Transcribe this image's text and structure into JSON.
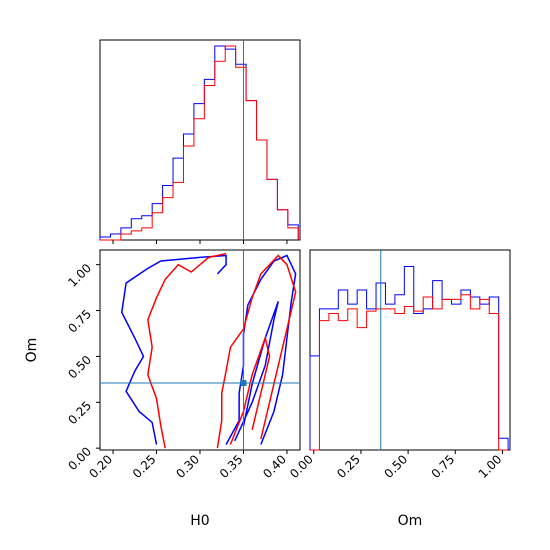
{
  "chart_data": {
    "type": "corner",
    "parameters": [
      "H0",
      "Om"
    ],
    "truth": {
      "H0": 0.35,
      "Om": 0.355
    },
    "colors": {
      "series_a": "#0000ff",
      "series_b": "#ff0000",
      "truth": "#1f77b4"
    },
    "panels": {
      "hist_h0": {
        "type": "step-histogram",
        "xlim": [
          0.185,
          0.415
        ],
        "bins": [
          0.185,
          0.197,
          0.209,
          0.221,
          0.233,
          0.245,
          0.257,
          0.269,
          0.281,
          0.293,
          0.305,
          0.317,
          0.329,
          0.341,
          0.353,
          0.365,
          0.377,
          0.389,
          0.401,
          0.413
        ],
        "series": [
          {
            "color": "#0000ff",
            "values": [
              1,
              2,
              4,
              7,
              8,
              12,
              18,
              27,
              35,
              45,
              53,
              64,
              63,
              58,
              46,
              33,
              20,
              10,
              5
            ]
          },
          {
            "color": "#ff0000",
            "values": [
              0,
              0,
              2,
              3,
              4,
              9,
              14,
              19,
              31,
              40,
              51,
              59,
              64,
              57,
              46,
              33,
              20,
              10,
              4
            ]
          }
        ]
      },
      "contour_h0_om": {
        "type": "contour",
        "xlim": [
          0.185,
          0.415
        ],
        "ylim": [
          -0.01,
          1.08
        ],
        "series": [
          {
            "color": "#0000ff",
            "level": "outer",
            "points": [
              [
                0.25,
                0.02
              ],
              [
                0.245,
                0.14
              ],
              [
                0.23,
                0.2
              ],
              [
                0.215,
                0.31
              ],
              [
                0.225,
                0.42
              ],
              [
                0.235,
                0.5
              ],
              [
                0.225,
                0.6
              ],
              [
                0.21,
                0.74
              ],
              [
                0.215,
                0.9
              ],
              [
                0.24,
                0.98
              ],
              [
                0.255,
                1.02
              ],
              [
                0.3,
                1.04
              ],
              [
                0.33,
                1.05
              ],
              [
                0.33,
                1.0
              ],
              [
                0.32,
                0.95
              ]
            ]
          },
          {
            "color": "#0000ff",
            "level": "outer",
            "points": [
              [
                0.33,
                0.02
              ],
              [
                0.345,
                0.15
              ],
              [
                0.345,
                0.3
              ],
              [
                0.35,
                0.45
              ],
              [
                0.35,
                0.62
              ],
              [
                0.355,
                0.78
              ],
              [
                0.37,
                0.92
              ],
              [
                0.385,
                1.02
              ],
              [
                0.4,
                1.05
              ],
              [
                0.41,
                0.95
              ],
              [
                0.405,
                0.8
              ],
              [
                0.4,
                0.6
              ],
              [
                0.395,
                0.4
              ],
              [
                0.385,
                0.2
              ],
              [
                0.37,
                0.02
              ]
            ]
          },
          {
            "color": "#0000ff",
            "level": "inner",
            "points": [
              [
                0.34,
                0.04
              ],
              [
                0.36,
                0.25
              ],
              [
                0.375,
                0.45
              ],
              [
                0.385,
                0.7
              ],
              [
                0.39,
                0.8
              ],
              [
                0.375,
                0.6
              ],
              [
                0.36,
                0.35
              ],
              [
                0.35,
                0.12
              ]
            ]
          },
          {
            "color": "#ff0000",
            "level": "outer",
            "points": [
              [
                0.26,
                0.0
              ],
              [
                0.255,
                0.12
              ],
              [
                0.25,
                0.27
              ],
              [
                0.24,
                0.4
              ],
              [
                0.245,
                0.55
              ],
              [
                0.24,
                0.7
              ],
              [
                0.25,
                0.82
              ],
              [
                0.26,
                0.92
              ],
              [
                0.275,
                1.0
              ],
              [
                0.29,
                0.96
              ],
              [
                0.31,
                1.04
              ],
              [
                0.33,
                1.06
              ]
            ]
          },
          {
            "color": "#ff0000",
            "level": "outer",
            "points": [
              [
                0.32,
                0.0
              ],
              [
                0.325,
                0.15
              ],
              [
                0.325,
                0.3
              ],
              [
                0.33,
                0.42
              ],
              [
                0.335,
                0.55
              ],
              [
                0.35,
                0.65
              ],
              [
                0.36,
                0.82
              ],
              [
                0.37,
                0.95
              ],
              [
                0.39,
                1.05
              ],
              [
                0.4,
                1.0
              ],
              [
                0.41,
                0.85
              ],
              [
                0.4,
                0.65
              ],
              [
                0.39,
                0.45
              ],
              [
                0.38,
                0.25
              ],
              [
                0.37,
                0.05
              ]
            ]
          },
          {
            "color": "#ff0000",
            "level": "inner",
            "points": [
              [
                0.335,
                0.02
              ],
              [
                0.35,
                0.2
              ],
              [
                0.36,
                0.4
              ],
              [
                0.375,
                0.6
              ],
              [
                0.38,
                0.5
              ],
              [
                0.37,
                0.3
              ],
              [
                0.36,
                0.1
              ]
            ]
          }
        ]
      },
      "hist_om": {
        "type": "step-histogram",
        "xlim": [
          -0.02,
          1.04
        ],
        "bins": [
          -0.02,
          0.03,
          0.08,
          0.13,
          0.18,
          0.23,
          0.28,
          0.33,
          0.38,
          0.43,
          0.48,
          0.53,
          0.58,
          0.63,
          0.68,
          0.73,
          0.78,
          0.83,
          0.88,
          0.93,
          0.98,
          1.03
        ],
        "series": [
          {
            "color": "#0000ff",
            "values": [
              40,
              60,
              60,
              68,
              62,
              68,
              60,
              71,
              62,
              66,
              78,
              58,
              60,
              72,
              64,
              62,
              68,
              65,
              62,
              65,
              5
            ]
          },
          {
            "color": "#ff0000",
            "values": [
              0,
              55,
              58,
              55,
              60,
              52,
              59,
              60,
              60,
              58,
              61,
              59,
              65,
              60,
              64,
              64,
              66,
              60,
              64,
              58,
              0
            ]
          }
        ]
      }
    },
    "xticks_h0": [
      "0.20",
      "0.25",
      "0.30",
      "0.35",
      "0.40"
    ],
    "xticks_om": [
      "0.00",
      "0.25",
      "0.50",
      "0.75",
      "1.00"
    ],
    "yticks_om": [
      "0.00",
      "0.25",
      "0.50",
      "0.75",
      "1.00"
    ],
    "xlabel_h0": "H0",
    "xlabel_om": "Om",
    "ylabel_om": "Om"
  }
}
